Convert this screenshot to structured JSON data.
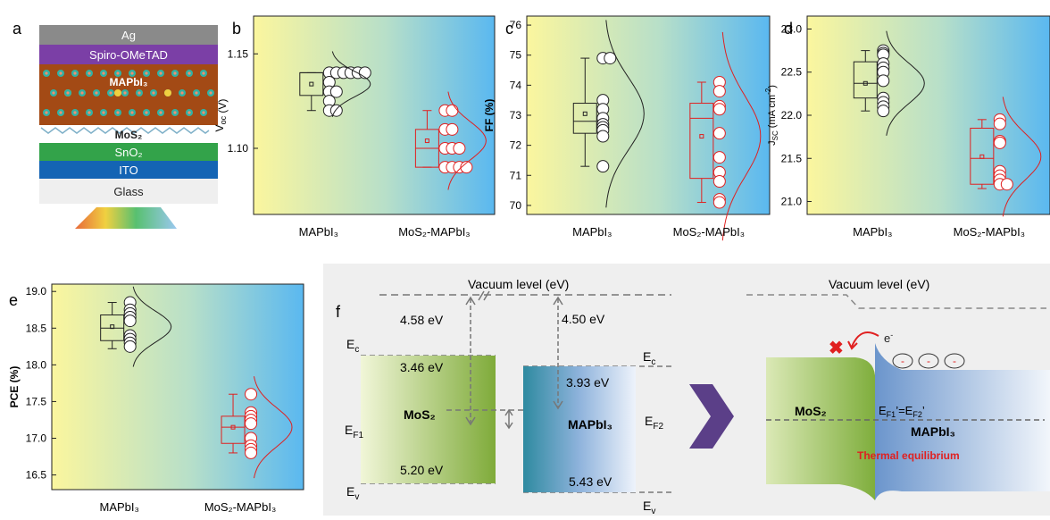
{
  "panel_letters": {
    "a": "a",
    "b": "b",
    "c": "c",
    "d": "d",
    "e": "e",
    "f": "f"
  },
  "stack": {
    "layers": [
      "Ag",
      "Spiro-OMeTAD",
      "MAPbI₃",
      "MoS₂",
      "SnO₂",
      "ITO",
      "Glass"
    ],
    "colors": {
      "Ag": "#8a8a8a",
      "Spiro-OMeTAD": "#7b3fa6",
      "MAPbI": "#a34a15",
      "SnO2": "#33a34a",
      "ITO": "#1464b4",
      "Glass": "#efefef"
    }
  },
  "colors": {
    "black_series": "#222222",
    "red_series": "#e02020",
    "bg_left": "#fbf69e",
    "bg_right": "#5ab8f0"
  },
  "chart_data": [
    {
      "panel": "b",
      "type": "box",
      "categories": [
        "MAPbI₃",
        "MoS₂-MAPbI₃"
      ],
      "ylabel": "V_oc (V)",
      "ylim": [
        1.065,
        1.17
      ],
      "yticks": [
        1.1,
        1.15
      ],
      "series": [
        {
          "category": "MAPbI₃",
          "q1": 1.128,
          "median": 1.14,
          "q3": 1.14,
          "mean": 1.134,
          "whisker_low": 1.12,
          "whisker_high": 1.14,
          "points": [
            1.14,
            1.14,
            1.14,
            1.14,
            1.14,
            1.14,
            1.135,
            1.13,
            1.13,
            1.125,
            1.12,
            1.12
          ]
        },
        {
          "category": "MoS₂-MAPbI₃",
          "q1": 1.09,
          "median": 1.1,
          "q3": 1.11,
          "mean": 1.104,
          "whisker_low": 1.09,
          "whisker_high": 1.12,
          "points": [
            1.12,
            1.12,
            1.11,
            1.11,
            1.1,
            1.1,
            1.1,
            1.09,
            1.09,
            1.09,
            1.09
          ]
        }
      ]
    },
    {
      "panel": "c",
      "type": "box",
      "categories": [
        "MAPbI₃",
        "MoS₂-MAPbI₃"
      ],
      "ylabel": "FF (%)",
      "ylim": [
        69.7,
        76.3
      ],
      "yticks": [
        70,
        71,
        72,
        73,
        74,
        75,
        76
      ],
      "series": [
        {
          "category": "MAPbI₃",
          "q1": 72.4,
          "median": 72.8,
          "q3": 73.4,
          "mean": 73.05,
          "whisker_low": 71.3,
          "whisker_high": 74.9,
          "points": [
            74.9,
            74.9,
            73.5,
            73.2,
            72.9,
            72.7,
            72.6,
            72.5,
            72.3,
            71.3
          ]
        },
        {
          "category": "MoS₂-MAPbI₃",
          "q1": 70.9,
          "median": 72.9,
          "q3": 73.4,
          "mean": 72.3,
          "whisker_low": 70.1,
          "whisker_high": 74.1,
          "points": [
            74.1,
            73.8,
            73.3,
            73.2,
            72.4,
            71.6,
            71.1,
            70.8,
            70.2,
            70.1
          ]
        }
      ]
    },
    {
      "panel": "d",
      "type": "box",
      "categories": [
        "MAPbI₃",
        "MoS₂-MAPbI₃"
      ],
      "ylabel": "J_SC (mA cm⁻²)",
      "ylim": [
        20.85,
        23.15
      ],
      "yticks": [
        21.0,
        21.5,
        22.0,
        22.5,
        23.0
      ],
      "series": [
        {
          "category": "MAPbI₃",
          "q1": 22.2,
          "median": 22.37,
          "q3": 22.62,
          "mean": 22.37,
          "whisker_low": 22.05,
          "whisker_high": 22.75,
          "points": [
            22.75,
            22.72,
            22.7,
            22.6,
            22.55,
            22.5,
            22.4,
            22.2,
            22.15,
            22.1,
            22.05
          ]
        },
        {
          "category": "MoS₂-MAPbI₃",
          "q1": 21.2,
          "median": 21.5,
          "q3": 21.85,
          "mean": 21.52,
          "whisker_low": 21.15,
          "whisker_high": 21.95,
          "points": [
            21.95,
            21.9,
            21.7,
            21.68,
            21.35,
            21.3,
            21.25,
            21.2,
            21.2
          ]
        }
      ]
    },
    {
      "panel": "e",
      "type": "box",
      "categories": [
        "MAPbI₃",
        "MoS₂-MAPbI₃"
      ],
      "ylabel": "PCE (%)",
      "ylim": [
        16.3,
        19.1
      ],
      "yticks": [
        16.5,
        17.0,
        17.5,
        18.0,
        18.5,
        19.0
      ],
      "series": [
        {
          "category": "MAPbI₃",
          "q1": 18.33,
          "median": 18.5,
          "q3": 18.68,
          "mean": 18.52,
          "whisker_low": 18.22,
          "whisker_high": 18.85,
          "points": [
            18.85,
            18.75,
            18.7,
            18.65,
            18.6,
            18.4,
            18.35,
            18.3,
            18.25
          ]
        },
        {
          "category": "MoS₂-MAPbI₃",
          "q1": 16.93,
          "median": 17.15,
          "q3": 17.3,
          "mean": 17.15,
          "whisker_low": 16.8,
          "whisker_high": 17.6,
          "points": [
            17.6,
            17.35,
            17.3,
            17.25,
            17.2,
            17.0,
            16.9,
            16.85,
            16.8
          ]
        }
      ]
    }
  ],
  "band_diagram": {
    "vacuum_level": "Vacuum level  (eV)",
    "mos2": {
      "name": "MoS₂",
      "affinity": "4.58 eV",
      "bandgap": "3.46 eV",
      "valence": "5.20 eV"
    },
    "mapbi": {
      "name": "MAPbI₃",
      "affinity": "4.50 eV",
      "offset": "3.93 eV",
      "valence": "5.43 eV"
    },
    "labels": {
      "ec_left": "E",
      "ec_right": "E",
      "ev_left": "E",
      "ev_right": "E",
      "ef1": "E",
      "ef2": "E",
      "sub_c": "c",
      "sub_v": "v",
      "sub_f1": "F1",
      "sub_f2": "F2"
    },
    "equilibrium": {
      "vacuum_level": "Vacuum level  (eV)",
      "mos2": "MoS₂",
      "mapbi": "MAPbI₃",
      "fermi": "E",
      "fermi_sub1": "F1",
      "fermi_eq": "’=E",
      "fermi_sub2": "F2",
      "fermi_tail": "’",
      "electron": "e",
      "electron_sup": "-",
      "minus": "-",
      "note": "Thermal equilibrium",
      "note_color": "#e02020"
    }
  }
}
